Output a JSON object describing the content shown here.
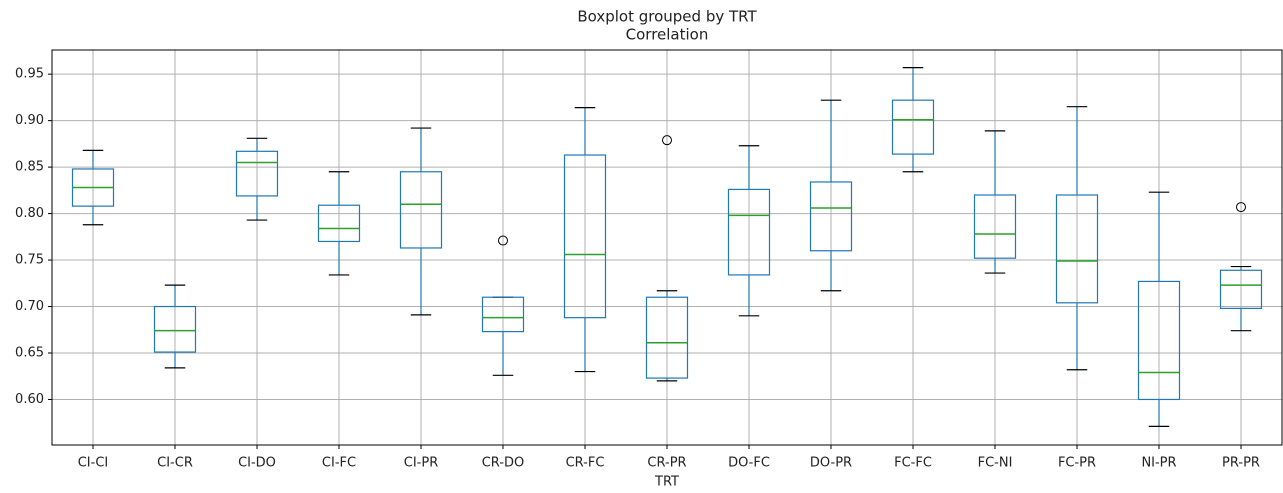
{
  "chart_data": {
    "type": "boxplot",
    "title": "Boxplot grouped by TRT",
    "subtitle": "Correlation",
    "x_label": "TRT",
    "categories": [
      "CI-CI",
      "CI-CR",
      "CI-DO",
      "CI-FC",
      "CI-PR",
      "CR-DO",
      "CR-FC",
      "CR-PR",
      "DO-FC",
      "DO-PR",
      "FC-FC",
      "FC-NI",
      "FC-PR",
      "NI-PR",
      "PR-PR"
    ],
    "boxes": [
      {
        "whislo": 0.788,
        "q1": 0.808,
        "med": 0.828,
        "q3": 0.848,
        "whishi": 0.868,
        "fliers": []
      },
      {
        "whislo": 0.634,
        "q1": 0.651,
        "med": 0.674,
        "q3": 0.7,
        "whishi": 0.723,
        "fliers": []
      },
      {
        "whislo": 0.793,
        "q1": 0.819,
        "med": 0.855,
        "q3": 0.867,
        "whishi": 0.881,
        "fliers": []
      },
      {
        "whislo": 0.734,
        "q1": 0.77,
        "med": 0.784,
        "q3": 0.809,
        "whishi": 0.845,
        "fliers": []
      },
      {
        "whislo": 0.691,
        "q1": 0.763,
        "med": 0.81,
        "q3": 0.845,
        "whishi": 0.892,
        "fliers": []
      },
      {
        "whislo": 0.626,
        "q1": 0.673,
        "med": 0.688,
        "q3": 0.71,
        "whishi": 0.71,
        "fliers": [
          0.771
        ]
      },
      {
        "whislo": 0.63,
        "q1": 0.688,
        "med": 0.756,
        "q3": 0.863,
        "whishi": 0.914,
        "fliers": []
      },
      {
        "whislo": 0.62,
        "q1": 0.623,
        "med": 0.661,
        "q3": 0.71,
        "whishi": 0.717,
        "fliers": [
          0.879
        ]
      },
      {
        "whislo": 0.69,
        "q1": 0.734,
        "med": 0.798,
        "q3": 0.826,
        "whishi": 0.873,
        "fliers": []
      },
      {
        "whislo": 0.717,
        "q1": 0.76,
        "med": 0.806,
        "q3": 0.834,
        "whishi": 0.922,
        "fliers": []
      },
      {
        "whislo": 0.845,
        "q1": 0.864,
        "med": 0.901,
        "q3": 0.922,
        "whishi": 0.957,
        "fliers": []
      },
      {
        "whislo": 0.736,
        "q1": 0.752,
        "med": 0.778,
        "q3": 0.82,
        "whishi": 0.889,
        "fliers": []
      },
      {
        "whislo": 0.632,
        "q1": 0.704,
        "med": 0.749,
        "q3": 0.82,
        "whishi": 0.915,
        "fliers": []
      },
      {
        "whislo": 0.571,
        "q1": 0.6,
        "med": 0.629,
        "q3": 0.727,
        "whishi": 0.823,
        "fliers": []
      },
      {
        "whislo": 0.674,
        "q1": 0.698,
        "med": 0.723,
        "q3": 0.739,
        "whishi": 0.743,
        "fliers": [
          0.807
        ]
      }
    ],
    "box_color": "#1f77b4",
    "median_color": "#2ca02c",
    "whisker_cap_color": "#000000",
    "ylim": [
      0.551,
      0.976
    ],
    "yticks": [
      {
        "value": 0.6,
        "label": "0.60"
      },
      {
        "value": 0.65,
        "label": "0.65"
      },
      {
        "value": 0.7,
        "label": "0.70"
      },
      {
        "value": 0.75,
        "label": "0.75"
      },
      {
        "value": 0.8,
        "label": "0.80"
      },
      {
        "value": 0.85,
        "label": "0.85"
      },
      {
        "value": 0.9,
        "label": "0.90"
      },
      {
        "value": 0.95,
        "label": "0.95"
      }
    ],
    "grid": true
  }
}
